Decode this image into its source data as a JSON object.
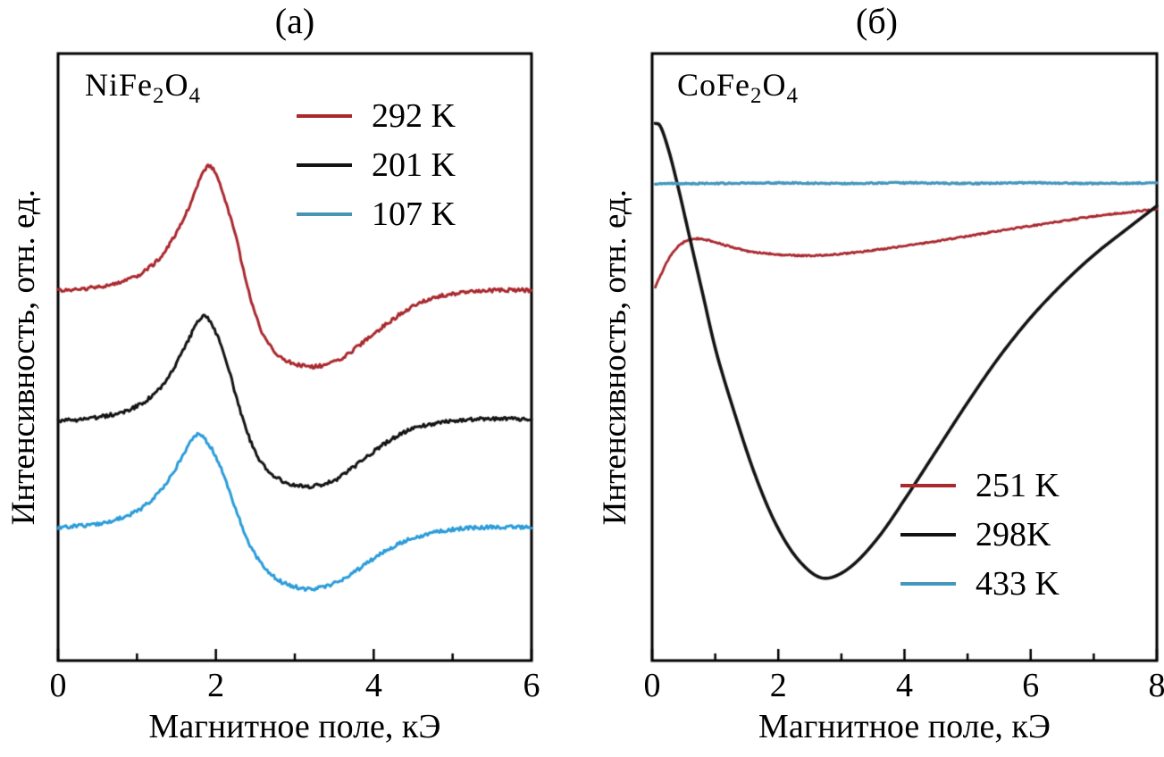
{
  "page": {
    "background": "#ffffff"
  },
  "panels": [
    {
      "title": "(а)",
      "formula": {
        "base1": "NiFe",
        "sub1": "2",
        "base2": "O",
        "sub2": "4"
      },
      "xlabel": "Магнитное поле, кЭ",
      "ylabel": "Интенсивность, отн. ед.",
      "legend": [
        {
          "label": "292 K",
          "color": "#a9292f"
        },
        {
          "label": "201 K",
          "color": "#131313"
        },
        {
          "label": "107 K",
          "color": "#4a93b5"
        }
      ]
    },
    {
      "title": "(б)",
      "formula": {
        "base1": "CoFe",
        "sub1": "2",
        "base2": "O",
        "sub2": "4"
      },
      "xlabel": "Магнитное поле, кЭ",
      "ylabel": "Интенсивность, отн. ед.",
      "legend": [
        {
          "label": "251 K",
          "color": "#a9292f"
        },
        {
          "label": "298K",
          "color": "#131313"
        },
        {
          "label": "433 K",
          "color": "#4596bd"
        }
      ]
    }
  ],
  "chart_data": [
    {
      "type": "line",
      "panel": "(а)",
      "title": "NiFe2O4",
      "xlabel": "Магнитное поле, кЭ",
      "ylabel": "Интенсивность, отн. ед.",
      "xlim": [
        0,
        6
      ],
      "ylim": [
        0,
        100
      ],
      "xticks": [
        0,
        2,
        4,
        6
      ],
      "xminor": [
        1,
        3,
        5
      ],
      "grid": false,
      "legend_position": "upper-center-right-inside",
      "series": [
        {
          "name": "292 K",
          "color": "#a9292f",
          "noise": 0.3,
          "lw": 3,
          "points": [
            [
              0,
              61
            ],
            [
              0.3,
              61.2
            ],
            [
              0.6,
              61.8
            ],
            [
              0.9,
              62.8
            ],
            [
              1.1,
              64.2
            ],
            [
              1.3,
              66.5
            ],
            [
              1.5,
              70.5
            ],
            [
              1.65,
              74.5
            ],
            [
              1.8,
              79.3
            ],
            [
              1.9,
              81.5
            ],
            [
              2.0,
              80.2
            ],
            [
              2.1,
              76.5
            ],
            [
              2.25,
              70
            ],
            [
              2.4,
              61.5
            ],
            [
              2.55,
              55.2
            ],
            [
              2.7,
              51.6
            ],
            [
              2.9,
              49.4
            ],
            [
              3.1,
              48.6
            ],
            [
              3.3,
              48.5
            ],
            [
              3.6,
              49.9
            ],
            [
              3.9,
              52.8
            ],
            [
              4.2,
              55.8
            ],
            [
              4.5,
              58.4
            ],
            [
              4.8,
              59.9
            ],
            [
              5.2,
              60.7
            ],
            [
              5.6,
              61
            ],
            [
              6,
              61
            ]
          ]
        },
        {
          "name": "201 K",
          "color": "#131313",
          "noise": 0.3,
          "lw": 3,
          "points": [
            [
              0,
              39.5
            ],
            [
              0.3,
              39.7
            ],
            [
              0.6,
              40.3
            ],
            [
              0.9,
              41.3
            ],
            [
              1.1,
              42.7
            ],
            [
              1.3,
              45
            ],
            [
              1.5,
              49
            ],
            [
              1.65,
              52.8
            ],
            [
              1.8,
              56.3
            ],
            [
              1.88,
              56.6
            ],
            [
              2.0,
              54
            ],
            [
              2.15,
              48.5
            ],
            [
              2.3,
              41.5
            ],
            [
              2.45,
              35.8
            ],
            [
              2.6,
              32.2
            ],
            [
              2.8,
              29.9
            ],
            [
              3.0,
              28.9
            ],
            [
              3.2,
              28.7
            ],
            [
              3.5,
              29.7
            ],
            [
              3.8,
              32.4
            ],
            [
              4.1,
              35.4
            ],
            [
              4.4,
              37.7
            ],
            [
              4.7,
              38.9
            ],
            [
              5.0,
              39.5
            ],
            [
              5.5,
              39.8
            ],
            [
              6,
              39.8
            ]
          ]
        },
        {
          "name": "107 K",
          "color": "#2b9cd8",
          "noise": 0.3,
          "lw": 3,
          "points": [
            [
              0,
              22
            ],
            [
              0.3,
              22.2
            ],
            [
              0.6,
              22.8
            ],
            [
              0.9,
              24
            ],
            [
              1.1,
              25.5
            ],
            [
              1.3,
              28
            ],
            [
              1.45,
              30.8
            ],
            [
              1.6,
              34.3
            ],
            [
              1.75,
              37.2
            ],
            [
              1.85,
              36.6
            ],
            [
              2.0,
              33.6
            ],
            [
              2.15,
              28.8
            ],
            [
              2.3,
              23.2
            ],
            [
              2.45,
              18.6
            ],
            [
              2.6,
              15.6
            ],
            [
              2.8,
              13.2
            ],
            [
              3.0,
              12.2
            ],
            [
              3.2,
              11.8
            ],
            [
              3.5,
              12.7
            ],
            [
              3.8,
              15
            ],
            [
              4.1,
              17.7
            ],
            [
              4.4,
              19.7
            ],
            [
              4.7,
              20.9
            ],
            [
              5.0,
              21.6
            ],
            [
              5.5,
              22
            ],
            [
              6,
              22
            ]
          ]
        }
      ]
    },
    {
      "type": "line",
      "panel": "(б)",
      "title": "CoFe2O4",
      "xlabel": "Магнитное поле, кЭ",
      "ylabel": "Интенсивность, отн. ед.",
      "xlim": [
        0,
        8
      ],
      "ylim": [
        0,
        100
      ],
      "xticks": [
        0,
        2,
        4,
        6,
        8
      ],
      "xminor": [
        1,
        3,
        5,
        7
      ],
      "grid": false,
      "legend_position": "lower-right-inside",
      "series": [
        {
          "name": "251 K",
          "color": "#a9292f",
          "noise": 0.12,
          "lw": 2.8,
          "points": [
            [
              0.05,
              61.5
            ],
            [
              0.15,
              63.8
            ],
            [
              0.3,
              66.8
            ],
            [
              0.5,
              68.9
            ],
            [
              0.7,
              69.5
            ],
            [
              0.9,
              69.2
            ],
            [
              1.2,
              68.3
            ],
            [
              1.5,
              67.5
            ],
            [
              2.0,
              66.9
            ],
            [
              2.5,
              66.7
            ],
            [
              3.0,
              67
            ],
            [
              3.5,
              67.6
            ],
            [
              4.0,
              68.3
            ],
            [
              4.5,
              69.1
            ],
            [
              5.0,
              69.9
            ],
            [
              5.5,
              70.8
            ],
            [
              6.0,
              71.6
            ],
            [
              6.5,
              72.4
            ],
            [
              7.0,
              73.2
            ],
            [
              7.5,
              73.8
            ],
            [
              8.0,
              74.4
            ]
          ]
        },
        {
          "name": "298K",
          "color": "#131313",
          "noise": 0,
          "lw": 3.6,
          "points": [
            [
              0.05,
              88.5
            ],
            [
              0.12,
              88.2
            ],
            [
              0.25,
              84.5
            ],
            [
              0.4,
              78.5
            ],
            [
              0.6,
              69.5
            ],
            [
              0.8,
              60.5
            ],
            [
              1.0,
              51.5
            ],
            [
              1.3,
              41
            ],
            [
              1.6,
              31.5
            ],
            [
              1.9,
              23.8
            ],
            [
              2.2,
              18.2
            ],
            [
              2.5,
              14.7
            ],
            [
              2.7,
              13.6
            ],
            [
              2.9,
              13.9
            ],
            [
              3.2,
              15.9
            ],
            [
              3.6,
              20.5
            ],
            [
              4.0,
              26.5
            ],
            [
              4.5,
              34.5
            ],
            [
              5.0,
              42.5
            ],
            [
              5.5,
              50
            ],
            [
              6.0,
              56.5
            ],
            [
              6.5,
              62
            ],
            [
              7.0,
              66.8
            ],
            [
              7.5,
              70.9
            ],
            [
              8.0,
              74.9
            ]
          ]
        },
        {
          "name": "433 K",
          "color": "#4596bd",
          "noise": 0.12,
          "lw": 3.2,
          "points": [
            [
              0.05,
              78.6
            ],
            [
              1,
              78.6
            ],
            [
              2,
              78.7
            ],
            [
              3,
              78.6
            ],
            [
              4,
              78.7
            ],
            [
              5,
              78.6
            ],
            [
              6,
              78.7
            ],
            [
              7,
              78.6
            ],
            [
              8,
              78.7
            ]
          ]
        }
      ]
    }
  ]
}
